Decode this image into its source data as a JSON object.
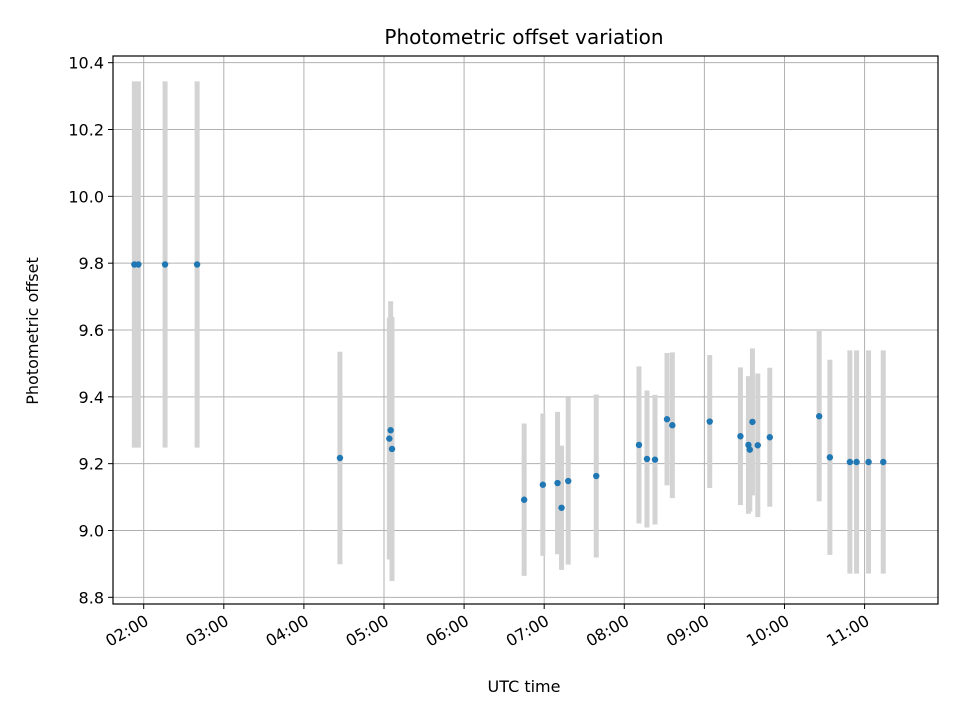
{
  "chart_data": {
    "type": "scatter",
    "title": "Photometric offset variation",
    "xlabel": "UTC time",
    "ylabel": "Photometric offset",
    "x_unit": "UTC time (HH:MM)",
    "xlim": [
      "01:37",
      "11:55"
    ],
    "ylim": [
      8.78,
      10.42
    ],
    "x_ticks": [
      "02:00",
      "03:00",
      "04:00",
      "05:00",
      "06:00",
      "07:00",
      "08:00",
      "09:00",
      "10:00",
      "11:00"
    ],
    "y_ticks": [
      8.8,
      9.0,
      9.2,
      9.4,
      9.6,
      9.8,
      10.0,
      10.2,
      10.4
    ],
    "y_tick_labels": [
      "8.8",
      "9.0",
      "9.2",
      "9.4",
      "9.6",
      "9.8",
      "10.0",
      "10.2",
      "10.4"
    ],
    "grid": true,
    "marker_color": "#1f77b4",
    "errorbar_color": "#d3d3d3",
    "points": [
      {
        "x": "01:53",
        "y": 9.796,
        "err": 0.548
      },
      {
        "x": "01:56",
        "y": 9.796,
        "err": 0.548
      },
      {
        "x": "02:16",
        "y": 9.796,
        "err": 0.548
      },
      {
        "x": "02:40",
        "y": 9.796,
        "err": 0.548
      },
      {
        "x": "04:27",
        "y": 9.217,
        "err": 0.318
      },
      {
        "x": "05:05",
        "y": 9.3,
        "err": 0.386
      },
      {
        "x": "05:04",
        "y": 9.275,
        "err": 0.362
      },
      {
        "x": "05:06",
        "y": 9.244,
        "err": 0.395
      },
      {
        "x": "06:45",
        "y": 9.092,
        "err": 0.228
      },
      {
        "x": "06:59",
        "y": 9.137,
        "err": 0.213
      },
      {
        "x": "07:10",
        "y": 9.142,
        "err": 0.213
      },
      {
        "x": "07:13",
        "y": 9.068,
        "err": 0.186
      },
      {
        "x": "07:18",
        "y": 9.148,
        "err": 0.25
      },
      {
        "x": "07:39",
        "y": 9.163,
        "err": 0.244
      },
      {
        "x": "08:11",
        "y": 9.256,
        "err": 0.235
      },
      {
        "x": "08:17",
        "y": 9.214,
        "err": 0.205
      },
      {
        "x": "08:23",
        "y": 9.212,
        "err": 0.194
      },
      {
        "x": "08:32",
        "y": 9.333,
        "err": 0.198
      },
      {
        "x": "08:36",
        "y": 9.315,
        "err": 0.218
      },
      {
        "x": "09:04",
        "y": 9.326,
        "err": 0.199
      },
      {
        "x": "09:27",
        "y": 9.282,
        "err": 0.206
      },
      {
        "x": "09:33",
        "y": 9.256,
        "err": 0.206
      },
      {
        "x": "09:34",
        "y": 9.242,
        "err": 0.185
      },
      {
        "x": "09:36",
        "y": 9.325,
        "err": 0.22
      },
      {
        "x": "09:40",
        "y": 9.255,
        "err": 0.215
      },
      {
        "x": "09:49",
        "y": 9.279,
        "err": 0.208
      },
      {
        "x": "10:26",
        "y": 9.342,
        "err": 0.255
      },
      {
        "x": "10:34",
        "y": 9.219,
        "err": 0.292
      },
      {
        "x": "10:49",
        "y": 9.205,
        "err": 0.334
      },
      {
        "x": "10:54",
        "y": 9.205,
        "err": 0.334
      },
      {
        "x": "11:03",
        "y": 9.205,
        "err": 0.334
      },
      {
        "x": "11:14",
        "y": 9.205,
        "err": 0.334
      }
    ]
  }
}
